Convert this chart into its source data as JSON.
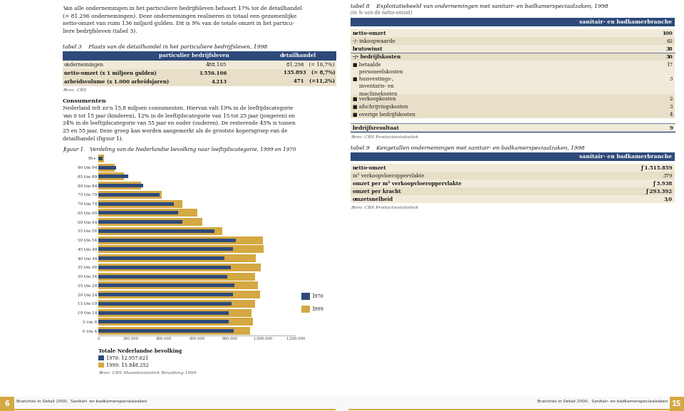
{
  "page_bg": "#ffffff",
  "page_width": 9.6,
  "page_height": 5.77,
  "intro_text": "Van alle ondernemingen in het particuliere bedrijfsleven behoort 17% tot de detailhandel\n(= 81.296 ondernemingen). Deze ondernemingen realiseren in totaal een gezamenlijke\nnetto-omzet van ruim 136 miljard gulden. Dit is 9% van de totale omzet in het particu-\nliere bedrijfsleven (tabel 3).",
  "tabel3_title": "tabel 3    Plaats van de detailhandel in het particuliere bedrijfsleven, 1998",
  "tabel3_header_col1": "particulier bedrijfsleven",
  "tabel3_header_col2": "detailhandel",
  "tabel3_header_bg": "#2e4a7a",
  "tabel3_header_color": "#ffffff",
  "tabel3_rows": [
    [
      "ondernemingen",
      "488.105",
      "81.296   (= 16,7%)"
    ],
    [
      "netto-omzet (x 1 miljoen gulden)",
      "1.556.106",
      "135.893   (= 8,7%)"
    ],
    [
      "arbeidsvolume (x 1.000 arbeidsjaren)",
      "4.213",
      "471   (=11,2%)"
    ]
  ],
  "tabel3_row_bold": [
    false,
    true,
    true
  ],
  "tabel3_row_colors": [
    "#f0ead8",
    "#e8dfc8",
    "#e8dfc8"
  ],
  "tabel3_source": "Bron: CBS",
  "consumenten_title": "Consumenten",
  "consumenten_text": "Nederland telt zo'n 15,8 miljoen consumenten. Hiervan valt 19% in de leeftijdscategorie\nvan 0 tot 15 jaar (kinderen), 12% in de leeftijdscategorie van 15 tot 25 jaar (jongeren) en\n24% in de leeftijdscategorie van 55 jaar en ouder (ouderen). De resterende 45% is tussen\n25 en 55 jaar. Deze groep kan worden aangemerkt als de grootste kopersgroep van de\ndetailhandel (figuur 1).",
  "figuur1_title": "figuur 1    Verdeling van de Nederlandse bevolking naar leeftijdscategorie, 1999 en 1970",
  "age_labels": [
    "95+",
    "90 t/m 94",
    "85 t/m 89",
    "80 t/m 84",
    "75 t/m 79",
    "70 t/m 74",
    "65 t/m 69",
    "60 t/m 64",
    "55 t/m 59",
    "50 t/m 54",
    "45 t/m 49",
    "40 t/m 44",
    "35 t/m 39",
    "30 t/m 34",
    "25 t/m 29",
    "20 t/m 24",
    "15 t/m 19",
    "10 t/m 14",
    "5 t/m 9",
    "0 t/m 4"
  ],
  "values_1970": [
    27000,
    108000,
    181000,
    273000,
    374000,
    460000,
    485000,
    513000,
    707000,
    836000,
    820000,
    766000,
    804000,
    784000,
    826000,
    817000,
    809000,
    791000,
    793000,
    823000
  ],
  "values_1999": [
    35000,
    100000,
    158000,
    261000,
    386000,
    512000,
    603000,
    632000,
    755000,
    1002000,
    1005000,
    956000,
    987000,
    953000,
    970000,
    983000,
    953000,
    930000,
    938000,
    924000
  ],
  "color_1970": "#2e4a7a",
  "color_1999": "#d4a843",
  "xmax": 1200000,
  "xticks": [
    0,
    200000,
    400000,
    600000,
    800000,
    1000000,
    1200000
  ],
  "xtick_labels": [
    "0",
    "200.000",
    "400.000",
    "600.000",
    "800.000",
    "1.000.000",
    "1.200.000"
  ],
  "totale_title": "Totale Nederlandse bevolking",
  "totale_1970": "1970: 12.957.621",
  "totale_1999": "1999: 15.848.252",
  "figuur1_source": "Bron: CBS Maandstatistiek Bevolking 1999",
  "tabel8_title": "tabel 8    Exploitatiebeeld van ondernemingen met sanitair- en badkamerspeciaalzaken, 1998",
  "tabel8_subtitle": "(in % van de netto-omzet)",
  "tabel8_header": "sanitair- en badkamerbranche",
  "tabel8_header_bg": "#2e4a7a",
  "tabel8_header_color": "#ffffff",
  "tabel8_rows": [
    [
      "netto-omzet",
      "100",
      true,
      "#f0ead8"
    ],
    [
      "-/- inkoopwaarde",
      "62",
      false,
      "#e8dfc8"
    ],
    [
      "brutowinst",
      "38",
      true,
      "#f0ead8"
    ],
    [
      "-/- bedrijfskosten",
      "30",
      true,
      "#e8dfc8"
    ],
    [
      "■ betaalde\n    personeelskosten",
      "17",
      false,
      "#f0ead8"
    ],
    [
      "■ huisvestings-,\n    inventaris- en\n    machinekosten",
      "3",
      false,
      "#f0ead8"
    ],
    [
      "■ verkoopkosten",
      "2",
      false,
      "#e8dfc8"
    ],
    [
      "■ afschrijvingskosten",
      "3",
      false,
      "#e8dfc8"
    ],
    [
      "■ overige bedrijfskosten",
      "4",
      false,
      "#e8dfc8"
    ],
    [
      "bedrijfsresultaat",
      "9",
      true,
      "#f0ead8"
    ]
  ],
  "tabel8_source": "Bron: CBS Productiestatistiek",
  "tabel9_title": "tabel 9    Kengetallen ondernemingen met sanitair- en badkamerspeciaalzaken, 1998",
  "tabel9_header": "sanitair- en badkamerbranche",
  "tabel9_header_bg": "#2e4a7a",
  "tabel9_header_color": "#ffffff",
  "tabel9_rows": [
    [
      "netto-omzet",
      "ƒ 1.515.859",
      true,
      "#f0ead8"
    ],
    [
      "m² verkoopvloeroppervlakte",
      "379",
      false,
      "#e8dfc8"
    ],
    [
      "omzet per m² verkoopvloeroppervlakte",
      "ƒ 3.938",
      true,
      "#f0ead8"
    ],
    [
      "omzet per kracht",
      "ƒ 293.392",
      true,
      "#e8dfc8"
    ],
    [
      "omzetsnelheid",
      "3,0",
      true,
      "#f0ead8"
    ]
  ],
  "tabel9_source": "Bron: CBS Productiestatistiek",
  "footer_bg": "#d4a843",
  "footer_left_num": "6",
  "footer_right_num": "15",
  "footer_text_left": "Branches in Detail 2000,  Sanitair- en badkamerspeciaalzaken",
  "footer_text_right": "Branches in Detail 2000,  Sanitair- en badkamerspeciaalzaken"
}
